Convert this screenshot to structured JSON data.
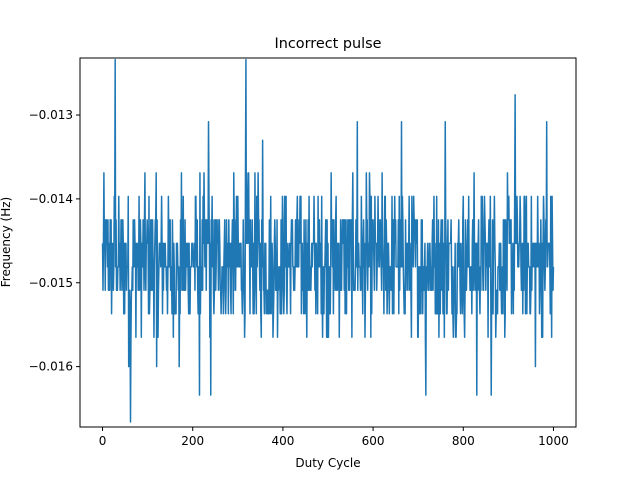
{
  "chart_data": {
    "type": "line",
    "title": "Incorrect pulse",
    "xlabel": "Duty Cycle",
    "ylabel": "Frequency (Hz)",
    "xlim": [
      -50,
      1050
    ],
    "ylim": [
      -0.01672,
      -0.01232
    ],
    "xticks": [
      0,
      200,
      400,
      600,
      800,
      1000
    ],
    "yticks": [
      -0.016,
      -0.015,
      -0.014,
      -0.013
    ],
    "xtick_labels": [
      "0",
      "200",
      "400",
      "600",
      "800",
      "1000"
    ],
    "ytick_labels": [
      "−0.016",
      "−0.015",
      "−0.014",
      "−0.013"
    ],
    "grid": false,
    "series": [
      {
        "color": "#1f77b4",
        "x_start": 0,
        "x_end": 1000,
        "base_levels": [
          -0.01565,
          -0.01537,
          -0.01509,
          -0.01481,
          -0.01453,
          -0.01425,
          -0.01397,
          -0.01369
        ],
        "spikes": [
          {
            "x": 28,
            "y": -0.01234
          },
          {
            "x": 62,
            "y": -0.01666
          },
          {
            "x": 58,
            "y": -0.016
          },
          {
            "x": 120,
            "y": -0.016
          },
          {
            "x": 170,
            "y": -0.016
          },
          {
            "x": 215,
            "y": -0.01634
          },
          {
            "x": 240,
            "y": -0.01634
          },
          {
            "x": 235,
            "y": -0.01308
          },
          {
            "x": 318,
            "y": -0.01234
          },
          {
            "x": 355,
            "y": -0.0133
          },
          {
            "x": 565,
            "y": -0.01308
          },
          {
            "x": 663,
            "y": -0.01308
          },
          {
            "x": 717,
            "y": -0.01634
          },
          {
            "x": 760,
            "y": -0.01308
          },
          {
            "x": 830,
            "y": -0.01634
          },
          {
            "x": 862,
            "y": -0.01634
          },
          {
            "x": 915,
            "y": -0.01276
          },
          {
            "x": 960,
            "y": -0.016
          },
          {
            "x": 985,
            "y": -0.01308
          },
          {
            "x": 996,
            "y": -0.01565
          }
        ]
      }
    ]
  }
}
